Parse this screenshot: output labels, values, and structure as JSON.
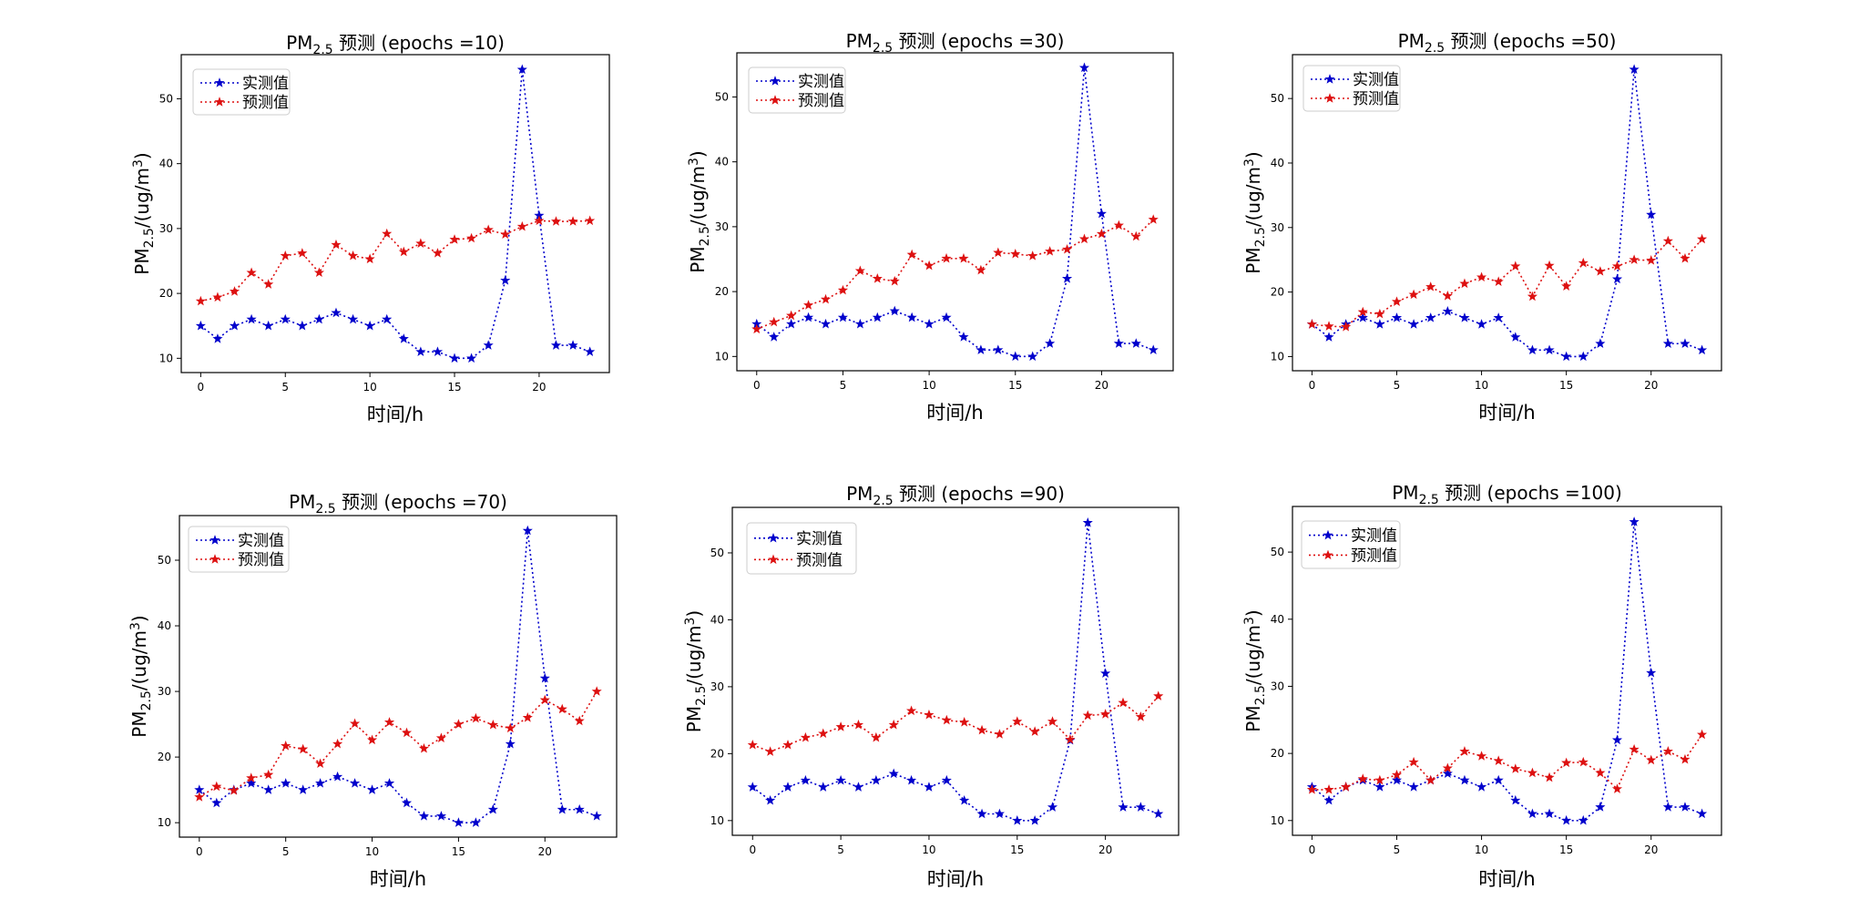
{
  "chart_data": [
    {
      "type": "line",
      "title": "PM2.5 预测 (epochs =10)",
      "title_main": "PM",
      "title_sub": "2.5",
      "title_rest": " 预测 (epochs =10)",
      "ylabel_main": "PM",
      "ylabel_sub": "2.5",
      "ylabel_rest": "/(ug/m",
      "ylabel_sup": "3",
      "ylabel_end": ")",
      "xlabel": "时间/h",
      "x": [
        0,
        1,
        2,
        3,
        4,
        5,
        6,
        7,
        8,
        9,
        10,
        11,
        12,
        13,
        14,
        15,
        16,
        17,
        18,
        19,
        20,
        21,
        22,
        23
      ],
      "xlim": [
        -1.15,
        24.15
      ],
      "ylim": [
        7.8,
        56.8
      ],
      "xticks": [
        0,
        5,
        10,
        15,
        20
      ],
      "yticks": [
        10,
        20,
        30,
        40,
        50
      ],
      "grid": false,
      "legend_position": "top-left",
      "series": [
        {
          "name": "实测值",
          "color": "#0000cc",
          "values": [
            15,
            13,
            15,
            16,
            15,
            16,
            15,
            16,
            17,
            16,
            15,
            16,
            13,
            11,
            11,
            10,
            10,
            12,
            22,
            54.5,
            32,
            12,
            12,
            11
          ]
        },
        {
          "name": "预测值",
          "color": "#dd1111",
          "values": [
            18.8,
            19.4,
            20.3,
            23.2,
            21.4,
            25.8,
            26.2,
            23.2,
            27.5,
            25.8,
            25.3,
            29.2,
            26.4,
            27.7,
            26.2,
            28.3,
            28.5,
            29.8,
            29.1,
            30.3,
            31.2,
            31.1,
            31.1,
            31.2
          ]
        }
      ]
    },
    {
      "type": "line",
      "title": "PM2.5 预测 (epochs =30)",
      "title_main": "PM",
      "title_sub": "2.5",
      "title_rest": " 预测 (epochs =30)",
      "ylabel_main": "PM",
      "ylabel_sub": "2.5",
      "ylabel_rest": "/(ug/m",
      "ylabel_sup": "3",
      "ylabel_end": ")",
      "xlabel": "时间/h",
      "x": [
        0,
        1,
        2,
        3,
        4,
        5,
        6,
        7,
        8,
        9,
        10,
        11,
        12,
        13,
        14,
        15,
        16,
        17,
        18,
        19,
        20,
        21,
        22,
        23
      ],
      "xlim": [
        -1.15,
        24.15
      ],
      "ylim": [
        7.8,
        56.8
      ],
      "xticks": [
        0,
        5,
        10,
        15,
        20
      ],
      "yticks": [
        10,
        20,
        30,
        40,
        50
      ],
      "grid": false,
      "legend_position": "top-left",
      "series": [
        {
          "name": "实测值",
          "color": "#0000cc",
          "values": [
            15,
            13,
            15,
            16,
            15,
            16,
            15,
            16,
            17,
            16,
            15,
            16,
            13,
            11,
            11,
            10,
            10,
            12,
            22,
            54.5,
            32,
            12,
            12,
            11
          ]
        },
        {
          "name": "预测值",
          "color": "#dd1111",
          "values": [
            14.2,
            15.3,
            16.3,
            17.9,
            18.8,
            20.2,
            23.2,
            22.0,
            21.6,
            25.7,
            24.0,
            25.1,
            25.1,
            23.3,
            26.0,
            25.8,
            25.5,
            26.2,
            26.5,
            28.1,
            28.9,
            30.2,
            28.5,
            31.1
          ]
        }
      ]
    },
    {
      "type": "line",
      "title": "PM2.5 预测 (epochs =50)",
      "title_main": "PM",
      "title_sub": "2.5",
      "title_rest": " 预测 (epochs =50)",
      "ylabel_main": "PM",
      "ylabel_sub": "2.5",
      "ylabel_rest": "/(ug/m",
      "ylabel_sup": "3",
      "ylabel_end": ")",
      "xlabel": "时间/h",
      "x": [
        0,
        1,
        2,
        3,
        4,
        5,
        6,
        7,
        8,
        9,
        10,
        11,
        12,
        13,
        14,
        15,
        16,
        17,
        18,
        19,
        20,
        21,
        22,
        23
      ],
      "xlim": [
        -1.15,
        24.15
      ],
      "ylim": [
        7.8,
        56.8
      ],
      "xticks": [
        0,
        5,
        10,
        15,
        20
      ],
      "yticks": [
        10,
        20,
        30,
        40,
        50
      ],
      "grid": false,
      "legend_position": "top-left",
      "series": [
        {
          "name": "实测值",
          "color": "#0000cc",
          "values": [
            15,
            13,
            15,
            16,
            15,
            16,
            15,
            16,
            17,
            16,
            15,
            16,
            13,
            11,
            11,
            10,
            10,
            12,
            22,
            54.5,
            32,
            12,
            12,
            11
          ]
        },
        {
          "name": "预测值",
          "color": "#dd1111",
          "values": [
            15.0,
            14.7,
            14.6,
            16.9,
            16.6,
            18.5,
            19.6,
            20.8,
            19.4,
            21.3,
            22.3,
            21.6,
            24.0,
            19.3,
            24.1,
            20.9,
            24.5,
            23.2,
            24.0,
            25.0,
            24.9,
            27.9,
            25.2,
            28.2
          ]
        }
      ]
    },
    {
      "type": "line",
      "title": "PM2.5 预测 (epochs =70)",
      "title_main": "PM",
      "title_sub": "2.5",
      "title_rest": " 预测 (epochs =70)",
      "ylabel_main": "PM",
      "ylabel_sub": "2.5",
      "ylabel_rest": "/(ug/m",
      "ylabel_sup": "3",
      "ylabel_end": ")",
      "xlabel": "时间/h",
      "x": [
        0,
        1,
        2,
        3,
        4,
        5,
        6,
        7,
        8,
        9,
        10,
        11,
        12,
        13,
        14,
        15,
        16,
        17,
        18,
        19,
        20,
        21,
        22,
        23
      ],
      "xlim": [
        -1.15,
        24.15
      ],
      "ylim": [
        7.8,
        56.8
      ],
      "xticks": [
        0,
        5,
        10,
        15,
        20
      ],
      "yticks": [
        10,
        20,
        30,
        40,
        50
      ],
      "grid": false,
      "legend_position": "top-left",
      "series": [
        {
          "name": "实测值",
          "color": "#0000cc",
          "values": [
            15,
            13,
            15,
            16,
            15,
            16,
            15,
            16,
            17,
            16,
            15,
            16,
            13,
            11,
            11,
            10,
            10,
            12,
            22,
            54.5,
            32,
            12,
            12,
            11
          ]
        },
        {
          "name": "预测值",
          "color": "#dd1111",
          "values": [
            13.9,
            15.5,
            14.9,
            16.8,
            17.3,
            21.7,
            21.2,
            19.0,
            22.0,
            25.1,
            22.6,
            25.3,
            23.7,
            21.3,
            22.9,
            25.0,
            25.9,
            24.9,
            24.4,
            26.0,
            28.7,
            27.3,
            25.5,
            30.0
          ]
        }
      ]
    },
    {
      "type": "line",
      "title": "PM2.5 预测 (epochs =90)",
      "title_main": "PM",
      "title_sub": "2.5",
      "title_rest": " 预测 (epochs =90)",
      "ylabel_main": "PM",
      "ylabel_sub": "2.5",
      "ylabel_rest": "/(ug/m",
      "ylabel_sup": "3",
      "ylabel_end": ")",
      "xlabel": "时间/h",
      "x": [
        0,
        1,
        2,
        3,
        4,
        5,
        6,
        7,
        8,
        9,
        10,
        11,
        12,
        13,
        14,
        15,
        16,
        17,
        18,
        19,
        20,
        21,
        22,
        23
      ],
      "xlim": [
        -1.15,
        24.15
      ],
      "ylim": [
        7.8,
        56.8
      ],
      "xticks": [
        0,
        5,
        10,
        15,
        20
      ],
      "yticks": [
        10,
        20,
        30,
        40,
        50
      ],
      "grid": false,
      "legend_position": "top-left",
      "series": [
        {
          "name": "实测值",
          "color": "#0000cc",
          "values": [
            15,
            13,
            15,
            16,
            15,
            16,
            15,
            16,
            17,
            16,
            15,
            16,
            13,
            11,
            11,
            10,
            10,
            12,
            22,
            54.5,
            32,
            12,
            12,
            11
          ]
        },
        {
          "name": "预测值",
          "color": "#dd1111",
          "values": [
            21.3,
            20.3,
            21.3,
            22.4,
            23.0,
            24.0,
            24.3,
            22.4,
            24.3,
            26.4,
            25.8,
            25.0,
            24.7,
            23.5,
            22.9,
            24.8,
            23.3,
            24.8,
            22.1,
            25.7,
            25.9,
            27.6,
            25.5,
            28.6
          ]
        }
      ]
    },
    {
      "type": "line",
      "title": "PM2.5 预测 (epochs =100)",
      "title_main": "PM",
      "title_sub": "2.5",
      "title_rest": " 预测 (epochs =100)",
      "ylabel_main": "PM",
      "ylabel_sub": "2.5",
      "ylabel_rest": "/(ug/m",
      "ylabel_sup": "3",
      "ylabel_end": ")",
      "xlabel": "时间/h",
      "x": [
        0,
        1,
        2,
        3,
        4,
        5,
        6,
        7,
        8,
        9,
        10,
        11,
        12,
        13,
        14,
        15,
        16,
        17,
        18,
        19,
        20,
        21,
        22,
        23
      ],
      "xlim": [
        -1.15,
        24.15
      ],
      "ylim": [
        7.8,
        56.8
      ],
      "xticks": [
        0,
        5,
        10,
        15,
        20
      ],
      "yticks": [
        10,
        20,
        30,
        40,
        50
      ],
      "grid": false,
      "legend_position": "top-left",
      "series": [
        {
          "name": "实测值",
          "color": "#0000cc",
          "values": [
            15,
            13,
            15,
            16,
            15,
            16,
            15,
            16,
            17,
            16,
            15,
            16,
            13,
            11,
            11,
            10,
            10,
            12,
            22,
            54.5,
            32,
            12,
            12,
            11
          ]
        },
        {
          "name": "预测值",
          "color": "#dd1111",
          "values": [
            14.6,
            14.6,
            15.0,
            16.2,
            16.0,
            16.8,
            18.7,
            16.0,
            17.8,
            20.3,
            19.6,
            18.9,
            17.7,
            17.1,
            16.4,
            18.6,
            18.7,
            17.1,
            14.7,
            20.6,
            19.0,
            20.3,
            19.1,
            22.8
          ]
        }
      ]
    }
  ]
}
